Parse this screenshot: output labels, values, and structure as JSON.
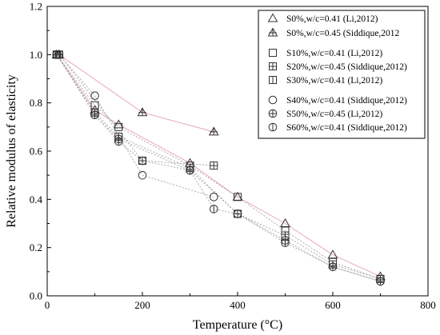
{
  "chart_data": {
    "type": "scatter",
    "xlabel": "Temperature (°C)",
    "ylabel": "Relative modulus of elasticity",
    "xlim": [
      0,
      800
    ],
    "ylim": [
      0.0,
      1.2
    ],
    "xticks": [
      0,
      200,
      400,
      600,
      800
    ],
    "yticks": [
      0.0,
      0.2,
      0.4,
      0.6,
      0.8,
      1.0,
      1.2
    ],
    "xtick_labels": [
      "0",
      "200",
      "400",
      "600",
      "800"
    ],
    "ytick_labels": [
      "0.0",
      "0.2",
      "0.4",
      "0.6",
      "0.8",
      "1.0",
      "1.2"
    ],
    "grid": false,
    "legend_position": "top-right",
    "series": [
      {
        "name": "S0%,w/c=0.41 (Li,2012)",
        "marker": "triangle",
        "color": "#e8a8b8",
        "x": [
          20,
          100,
          150,
          300,
          400,
          500,
          600,
          700
        ],
        "y": [
          1.0,
          0.77,
          0.71,
          0.55,
          0.41,
          0.3,
          0.17,
          0.08
        ]
      },
      {
        "name": "S0%,w/c=0.45 (Siddique,2012",
        "marker": "triangle-plus",
        "color": "#e8a8b8",
        "x": [
          25,
          200,
          350
        ],
        "y": [
          1.0,
          0.76,
          0.68
        ]
      },
      {
        "name": "S10%,w/c=0.41 (Li,2012)",
        "marker": "square",
        "color": "#aaaaaa",
        "x": [
          20,
          100,
          150,
          300,
          400,
          500,
          600,
          700
        ],
        "y": [
          1.0,
          0.79,
          0.7,
          0.54,
          0.41,
          0.27,
          0.14,
          0.07
        ]
      },
      {
        "name": "S20%,w/c=0.45 (Siddique,2012)",
        "marker": "square-plus",
        "color": "#aaaaaa",
        "x": [
          25,
          200,
          350
        ],
        "y": [
          1.0,
          0.56,
          0.54
        ]
      },
      {
        "name": "S30%,w/c=0.41 (Li,2012)",
        "marker": "square-vline",
        "color": "#aaaaaa",
        "x": [
          20,
          100,
          150,
          300,
          400,
          500,
          600,
          700
        ],
        "y": [
          1.0,
          0.76,
          0.66,
          0.53,
          0.34,
          0.25,
          0.13,
          0.07
        ]
      },
      {
        "name": "S40%,w/c=0.41 (Siddique,2012)",
        "marker": "circle",
        "color": "#aaaaaa",
        "x": [
          25,
          100,
          200,
          350
        ],
        "y": [
          1.0,
          0.83,
          0.5,
          0.41
        ]
      },
      {
        "name": "S50%,w/c=0.45 (Li,2012)",
        "marker": "circle-plus",
        "color": "#aaaaaa",
        "x": [
          20,
          100,
          150,
          300,
          400,
          500,
          600,
          700
        ],
        "y": [
          1.0,
          0.75,
          0.65,
          0.52,
          0.34,
          0.23,
          0.12,
          0.06
        ]
      },
      {
        "name": "S60%,w/c=0.41 (Siddique,2012)",
        "marker": "circle-vline",
        "color": "#aaaaaa",
        "x": [
          20,
          100,
          150,
          200,
          300,
          350,
          400,
          500,
          600,
          700
        ],
        "y": [
          1.0,
          0.75,
          0.64,
          0.56,
          0.52,
          0.36,
          0.34,
          0.22,
          0.12,
          0.06
        ]
      }
    ]
  }
}
